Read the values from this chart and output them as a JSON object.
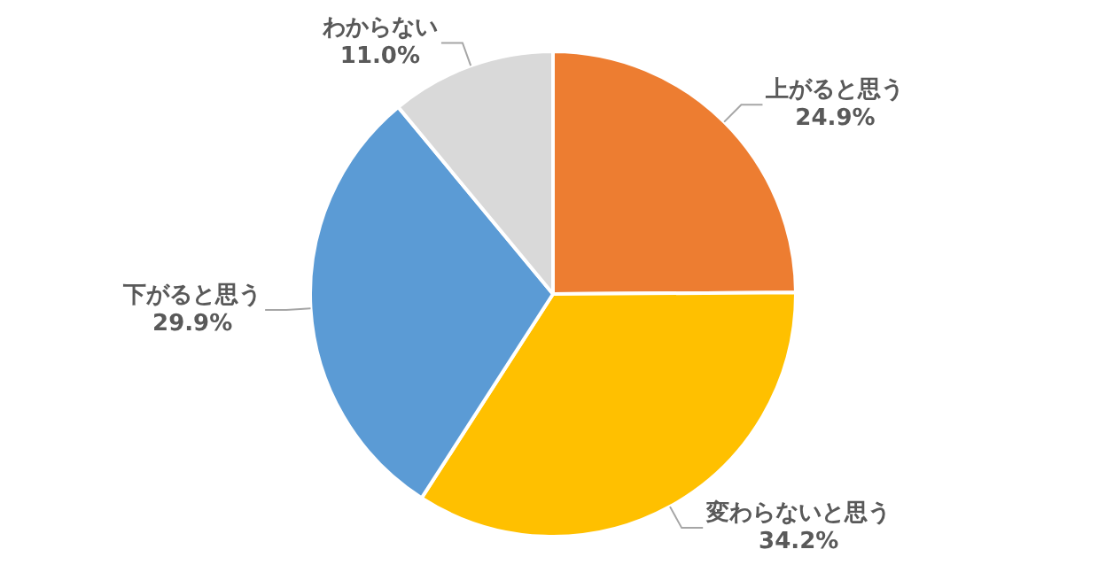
{
  "chart_data": {
    "type": "pie",
    "categories": [
      "上がると思う",
      "変わらないと思う",
      "下がると思う",
      "わからない"
    ],
    "values": [
      24.9,
      34.2,
      29.9,
      11.0
    ],
    "value_labels": [
      "24.9%",
      "34.2%",
      "29.9%",
      "11.0%"
    ],
    "colors": [
      "#ed7d31",
      "#ffc000",
      "#5b9bd5",
      "#d9d9d9"
    ],
    "legend": false
  }
}
